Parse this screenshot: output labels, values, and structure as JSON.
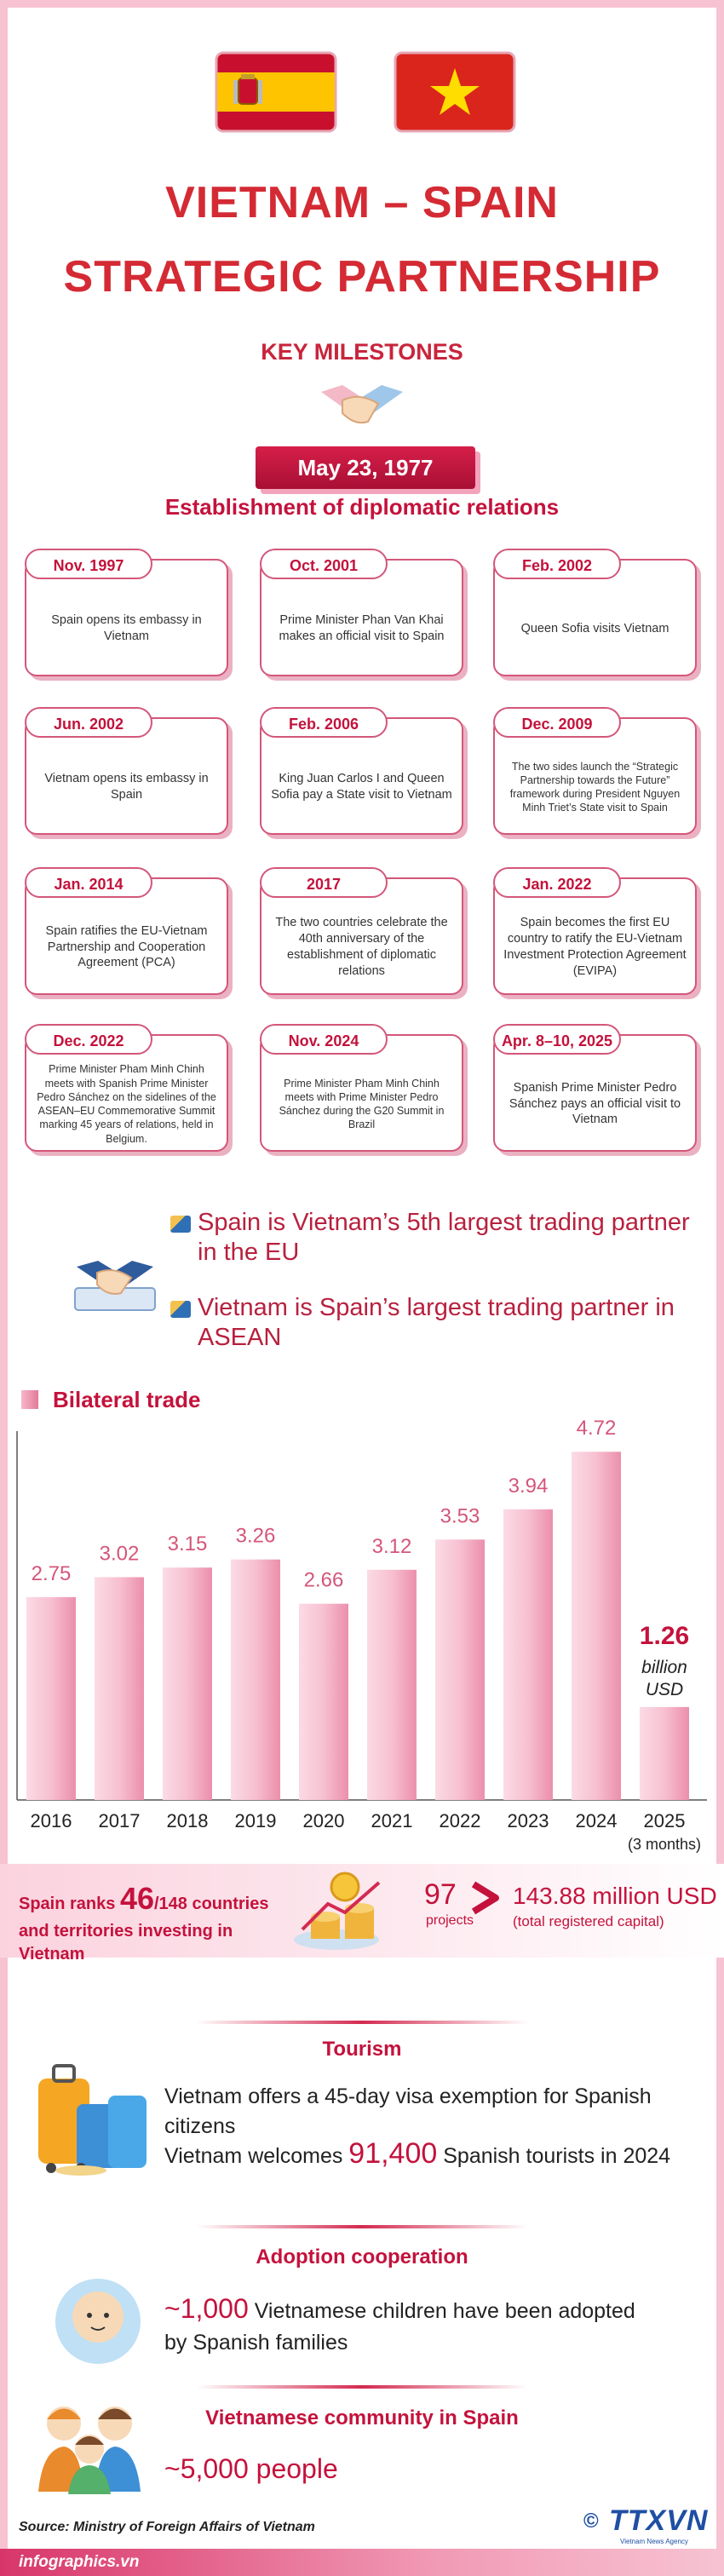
{
  "header": {
    "title_line1": "VIETNAM – SPAIN",
    "title_line2": "STRATEGIC PARTNERSHIP",
    "subtitle": "KEY MILESTONES"
  },
  "founding": {
    "date": "May 23, 1977",
    "event": "Establishment of diplomatic relations"
  },
  "milestones": [
    {
      "date": "Nov. 1997",
      "text": "Spain opens its embassy in Vietnam"
    },
    {
      "date": "Oct. 2001",
      "text": "Prime Minister Phan Van Khai makes an official visit to Spain"
    },
    {
      "date": "Feb. 2002",
      "text": "Queen Sofia visits Vietnam"
    },
    {
      "date": "Jun. 2002",
      "text": "Vietnam opens its embassy in Spain"
    },
    {
      "date": "Feb. 2006",
      "text": "King Juan Carlos I and Queen Sofia pay a State visit to Vietnam"
    },
    {
      "date": "Dec. 2009",
      "text": "The two sides launch the “Strategic Partnership towards the Future” framework during President  Nguyen Minh Triet’s State visit to Spain"
    },
    {
      "date": "Jan. 2014",
      "text": "Spain ratifies the EU-Vietnam Partnership and Cooperation Agreement (PCA)"
    },
    {
      "date": "2017",
      "text": "The two countries celebrate the 40th anniversary of the establishment of diplomatic relations"
    },
    {
      "date": "Jan. 2022",
      "text": "Spain becomes the first EU country to ratify the EU-Vietnam Investment Protection Agreement (EVIPA)"
    },
    {
      "date": "Dec. 2022",
      "text": "Prime Minister Pham Minh Chinh meets with Spanish Prime Minister Pedro Sánchez on the sidelines of the ASEAN–EU Commemorative Summit marking 45 years of relations, held in Belgium."
    },
    {
      "date": "Nov. 2024",
      "text": "Prime Minister Pham Minh Chinh meets with Prime Minister Pedro Sánchez during the G20 Summit in Brazil"
    },
    {
      "date": "Apr. 8–10, 2025",
      "text": "Spanish Prime Minister Pedro Sánchez pays an official visit to Vietnam"
    }
  ],
  "trade_facts": [
    "Spain is Vietnam’s 5th largest trading partner in the EU",
    "Vietnam is Spain’s largest trading partner in ASEAN"
  ],
  "chart_data": {
    "type": "bar",
    "title": "Bilateral trade",
    "categories": [
      "2016",
      "2017",
      "2018",
      "2019",
      "2020",
      "2021",
      "2022",
      "2023",
      "2024",
      "2025"
    ],
    "category_note": "(3 months)",
    "values": [
      2.75,
      3.02,
      3.15,
      3.26,
      2.66,
      3.12,
      3.53,
      3.94,
      4.72,
      1.26
    ],
    "unit_label": "billion USD",
    "color": "#f4a6bf",
    "ylim": [
      0,
      5
    ]
  },
  "investment": {
    "rank_prefix": "Spain ranks ",
    "rank": "46",
    "rank_suffix": "/148 countries and territories investing in Vietnam",
    "projects": "97",
    "projects_label": "projects",
    "capital": "143.88 million USD",
    "capital_label": "(total registered capital)"
  },
  "tourism": {
    "heading": "Tourism",
    "visa": "Vietnam offers a 45-day visa exemption for Spanish citizens",
    "visitors_prefix": "Vietnam welcomes ",
    "visitors": "91,400",
    "visitors_suffix": " Spanish tourists in 2024"
  },
  "adoption": {
    "heading": "Adoption cooperation",
    "count": "~1,000",
    "text": " Vietnamese children have been adopted by Spanish families"
  },
  "community": {
    "heading": "Vietnamese community in Spain",
    "count": "~5,000 people"
  },
  "footer": {
    "source": "Source: Ministry of Foreign Affairs of Vietnam",
    "site": "infographics.vn",
    "logo": "TTXVN",
    "logo_sub": "Vietnam News Agency",
    "copyright": "©"
  }
}
